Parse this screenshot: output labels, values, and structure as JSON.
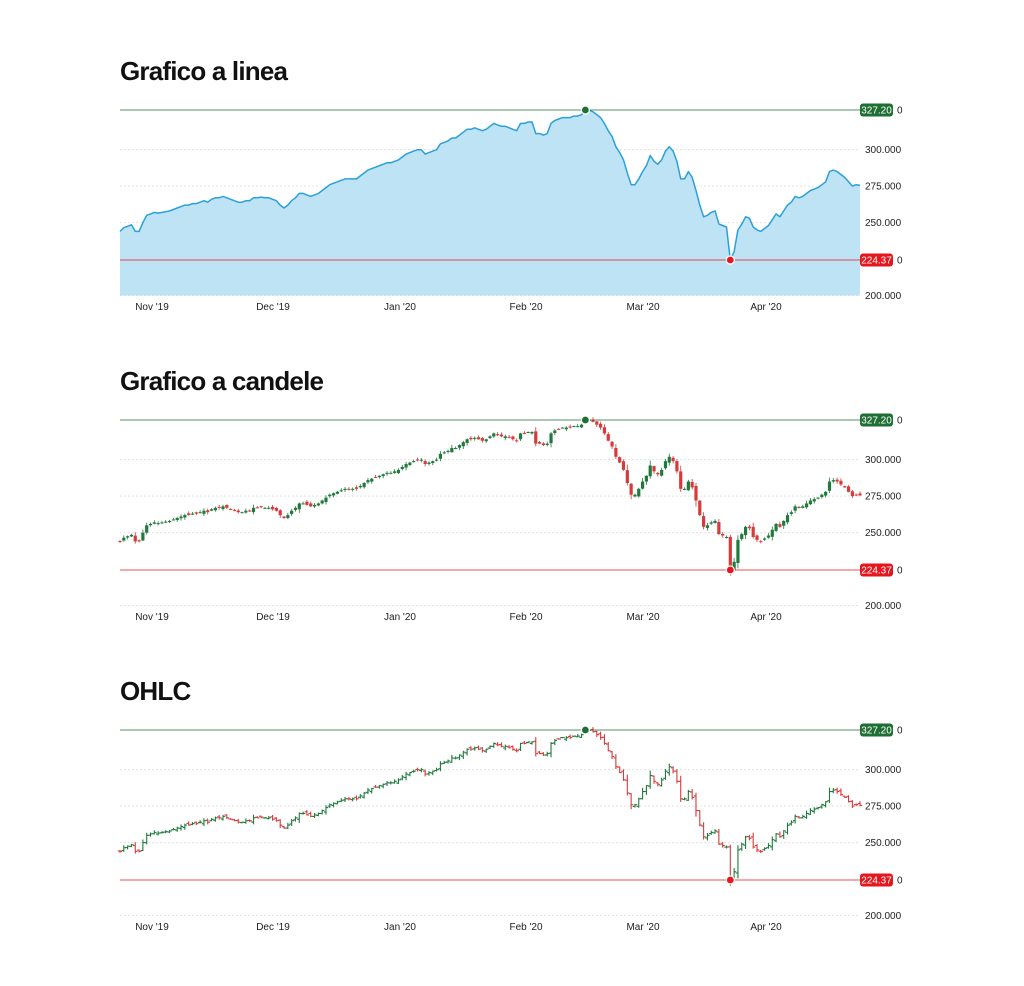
{
  "chart_data": [
    {
      "type": "area",
      "title": "Grafico a linea",
      "x_labels": [
        "Nov '19",
        "Dec '19",
        "Jan '20",
        "Feb '20",
        "Mar '20",
        "Apr '20"
      ],
      "y_ticks": [
        "200.000",
        "250.000",
        "275.000",
        "300.000"
      ],
      "ylim": [
        200,
        330
      ],
      "max": {
        "label": "327.20",
        "value": 327.2,
        "color": "#1f6e33"
      },
      "min": {
        "label": "224.37",
        "value": 224.37,
        "color": "#e5161d"
      },
      "colors": {
        "line": "#2aa0da",
        "fill": "#bee3f5"
      },
      "close": [
        244,
        246.5,
        247.5,
        248.5,
        244,
        244,
        250,
        255,
        256,
        257,
        256.5,
        257,
        257.5,
        258,
        259,
        260,
        261,
        262,
        262,
        263,
        263,
        264,
        265,
        264,
        266,
        267,
        267,
        268,
        267,
        266,
        265,
        264,
        264,
        265,
        265,
        267,
        267,
        267.5,
        267,
        267,
        266,
        265,
        262,
        260,
        262,
        265,
        267,
        270,
        270,
        269,
        268,
        269,
        270,
        272,
        274,
        276,
        277,
        278,
        279,
        280,
        280,
        280,
        280,
        282,
        284,
        286,
        287,
        288,
        289,
        290,
        291,
        291,
        292,
        293,
        295,
        297,
        298,
        299,
        300,
        300,
        297,
        298,
        299,
        300,
        304,
        305,
        306,
        308,
        308,
        310,
        312,
        314,
        314,
        315,
        314,
        313,
        314,
        316,
        318,
        317,
        316,
        316,
        315,
        314,
        313,
        318,
        318,
        319,
        319,
        311,
        311,
        310,
        311,
        318,
        320,
        321,
        322,
        322,
        322,
        323,
        323,
        324,
        327,
        327,
        326,
        324,
        322,
        318,
        313,
        309,
        302,
        298,
        293,
        284,
        276,
        276,
        280,
        285,
        289,
        296,
        292,
        290,
        293,
        299,
        302,
        299,
        292,
        280,
        280,
        285,
        281,
        272,
        262,
        254,
        255,
        257,
        258,
        249,
        248,
        247,
        224.37,
        230,
        245,
        249,
        254,
        253,
        247,
        245,
        244,
        246,
        248,
        252,
        256,
        254,
        258,
        262,
        264,
        268,
        267,
        268,
        270,
        272,
        273,
        274,
        276,
        278,
        285,
        286,
        285,
        283,
        281,
        278,
        275,
        276,
        275.5
      ]
    },
    {
      "type": "candlestick",
      "title": "Grafico a candele",
      "x_labels": [
        "Nov '19",
        "Dec '19",
        "Jan '20",
        "Feb '20",
        "Mar '20",
        "Apr '20"
      ],
      "y_ticks": [
        "200.000",
        "250.000",
        "275.000",
        "300.000"
      ],
      "ylim": [
        200,
        330
      ],
      "max": {
        "label": "327.20",
        "value": 327.2,
        "color": "#1f6e33"
      },
      "min": {
        "label": "224.37",
        "value": 224.37,
        "color": "#e5161d"
      },
      "colors": {
        "up": "#1f7a3c",
        "down": "#d63a3a"
      }
    },
    {
      "type": "ohlc",
      "title": "OHLC",
      "x_labels": [
        "Nov '19",
        "Dec '19",
        "Jan '20",
        "Feb '20",
        "Mar '20",
        "Apr '20"
      ],
      "y_ticks": [
        "200.000",
        "250.000",
        "275.000",
        "300.000"
      ],
      "ylim": [
        200,
        330
      ],
      "max": {
        "label": "327.20",
        "value": 327.2,
        "color": "#1f6e33"
      },
      "min": {
        "label": "224.37",
        "value": 224.37,
        "color": "#e5161d"
      },
      "colors": {
        "up": "#1f7a3c",
        "down": "#d63a3a"
      }
    }
  ]
}
